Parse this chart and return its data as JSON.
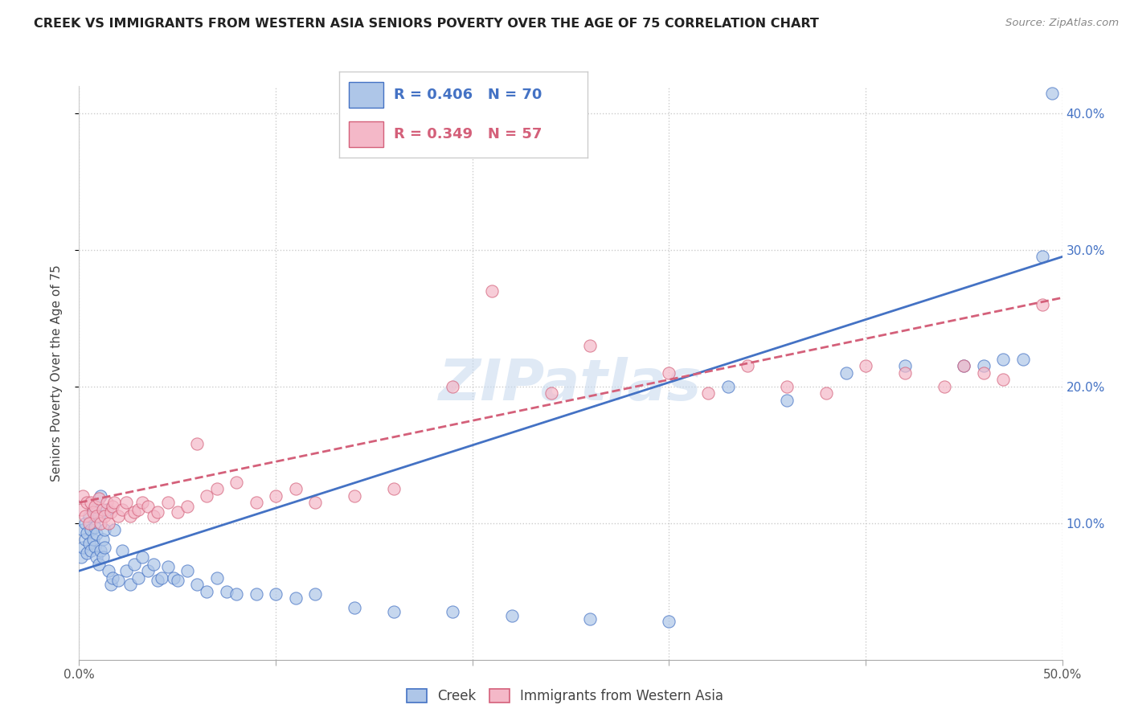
{
  "title": "CREEK VS IMMIGRANTS FROM WESTERN ASIA SENIORS POVERTY OVER THE AGE OF 75 CORRELATION CHART",
  "source": "Source: ZipAtlas.com",
  "ylabel": "Seniors Poverty Over the Age of 75",
  "xlim": [
    0.0,
    0.5
  ],
  "ylim": [
    0.0,
    0.42
  ],
  "xticks": [
    0.0,
    0.1,
    0.2,
    0.3,
    0.4,
    0.5
  ],
  "xticklabels": [
    "0.0%",
    "",
    "",
    "",
    "",
    "50.0%"
  ],
  "yticks": [
    0.1,
    0.2,
    0.3,
    0.4
  ],
  "yticklabels": [
    "10.0%",
    "20.0%",
    "30.0%",
    "40.0%"
  ],
  "legend_labels": [
    "Creek",
    "Immigrants from Western Asia"
  ],
  "creek_R": 0.406,
  "creek_N": 70,
  "immig_R": 0.349,
  "immig_N": 57,
  "creek_color": "#aec6e8",
  "immig_color": "#f4b8c8",
  "creek_line_color": "#4472c4",
  "immig_line_color": "#d4607a",
  "watermark": "ZIPatlas",
  "creek_x": [
    0.001,
    0.002,
    0.002,
    0.003,
    0.003,
    0.004,
    0.004,
    0.005,
    0.005,
    0.006,
    0.006,
    0.007,
    0.007,
    0.008,
    0.008,
    0.009,
    0.009,
    0.01,
    0.01,
    0.011,
    0.011,
    0.012,
    0.012,
    0.013,
    0.013,
    0.014,
    0.015,
    0.016,
    0.017,
    0.018,
    0.02,
    0.022,
    0.024,
    0.026,
    0.028,
    0.03,
    0.032,
    0.035,
    0.038,
    0.04,
    0.042,
    0.045,
    0.048,
    0.05,
    0.055,
    0.06,
    0.065,
    0.07,
    0.075,
    0.08,
    0.09,
    0.1,
    0.11,
    0.12,
    0.14,
    0.16,
    0.19,
    0.22,
    0.26,
    0.3,
    0.33,
    0.36,
    0.39,
    0.42,
    0.45,
    0.46,
    0.47,
    0.48,
    0.49,
    0.495
  ],
  "creek_y": [
    0.075,
    0.082,
    0.095,
    0.088,
    0.1,
    0.078,
    0.093,
    0.085,
    0.105,
    0.08,
    0.095,
    0.088,
    0.11,
    0.083,
    0.097,
    0.075,
    0.092,
    0.07,
    0.105,
    0.08,
    0.12,
    0.075,
    0.088,
    0.082,
    0.095,
    0.11,
    0.065,
    0.055,
    0.06,
    0.095,
    0.058,
    0.08,
    0.065,
    0.055,
    0.07,
    0.06,
    0.075,
    0.065,
    0.07,
    0.058,
    0.06,
    0.068,
    0.06,
    0.058,
    0.065,
    0.055,
    0.05,
    0.06,
    0.05,
    0.048,
    0.048,
    0.048,
    0.045,
    0.048,
    0.038,
    0.035,
    0.035,
    0.032,
    0.03,
    0.028,
    0.2,
    0.19,
    0.21,
    0.215,
    0.215,
    0.215,
    0.22,
    0.22,
    0.295,
    0.415
  ],
  "immig_x": [
    0.001,
    0.002,
    0.003,
    0.004,
    0.005,
    0.006,
    0.007,
    0.008,
    0.009,
    0.01,
    0.011,
    0.012,
    0.013,
    0.014,
    0.015,
    0.016,
    0.017,
    0.018,
    0.02,
    0.022,
    0.024,
    0.026,
    0.028,
    0.03,
    0.032,
    0.035,
    0.038,
    0.04,
    0.045,
    0.05,
    0.055,
    0.06,
    0.065,
    0.07,
    0.08,
    0.09,
    0.1,
    0.11,
    0.12,
    0.14,
    0.16,
    0.19,
    0.21,
    0.24,
    0.26,
    0.3,
    0.32,
    0.34,
    0.36,
    0.38,
    0.4,
    0.42,
    0.44,
    0.45,
    0.46,
    0.47,
    0.49
  ],
  "immig_y": [
    0.11,
    0.12,
    0.105,
    0.115,
    0.1,
    0.115,
    0.108,
    0.112,
    0.105,
    0.118,
    0.1,
    0.11,
    0.105,
    0.115,
    0.1,
    0.108,
    0.112,
    0.115,
    0.105,
    0.11,
    0.115,
    0.105,
    0.108,
    0.11,
    0.115,
    0.112,
    0.105,
    0.108,
    0.115,
    0.108,
    0.112,
    0.158,
    0.12,
    0.125,
    0.13,
    0.115,
    0.12,
    0.125,
    0.115,
    0.12,
    0.125,
    0.2,
    0.27,
    0.195,
    0.23,
    0.21,
    0.195,
    0.215,
    0.2,
    0.195,
    0.215,
    0.21,
    0.2,
    0.215,
    0.21,
    0.205,
    0.26
  ]
}
